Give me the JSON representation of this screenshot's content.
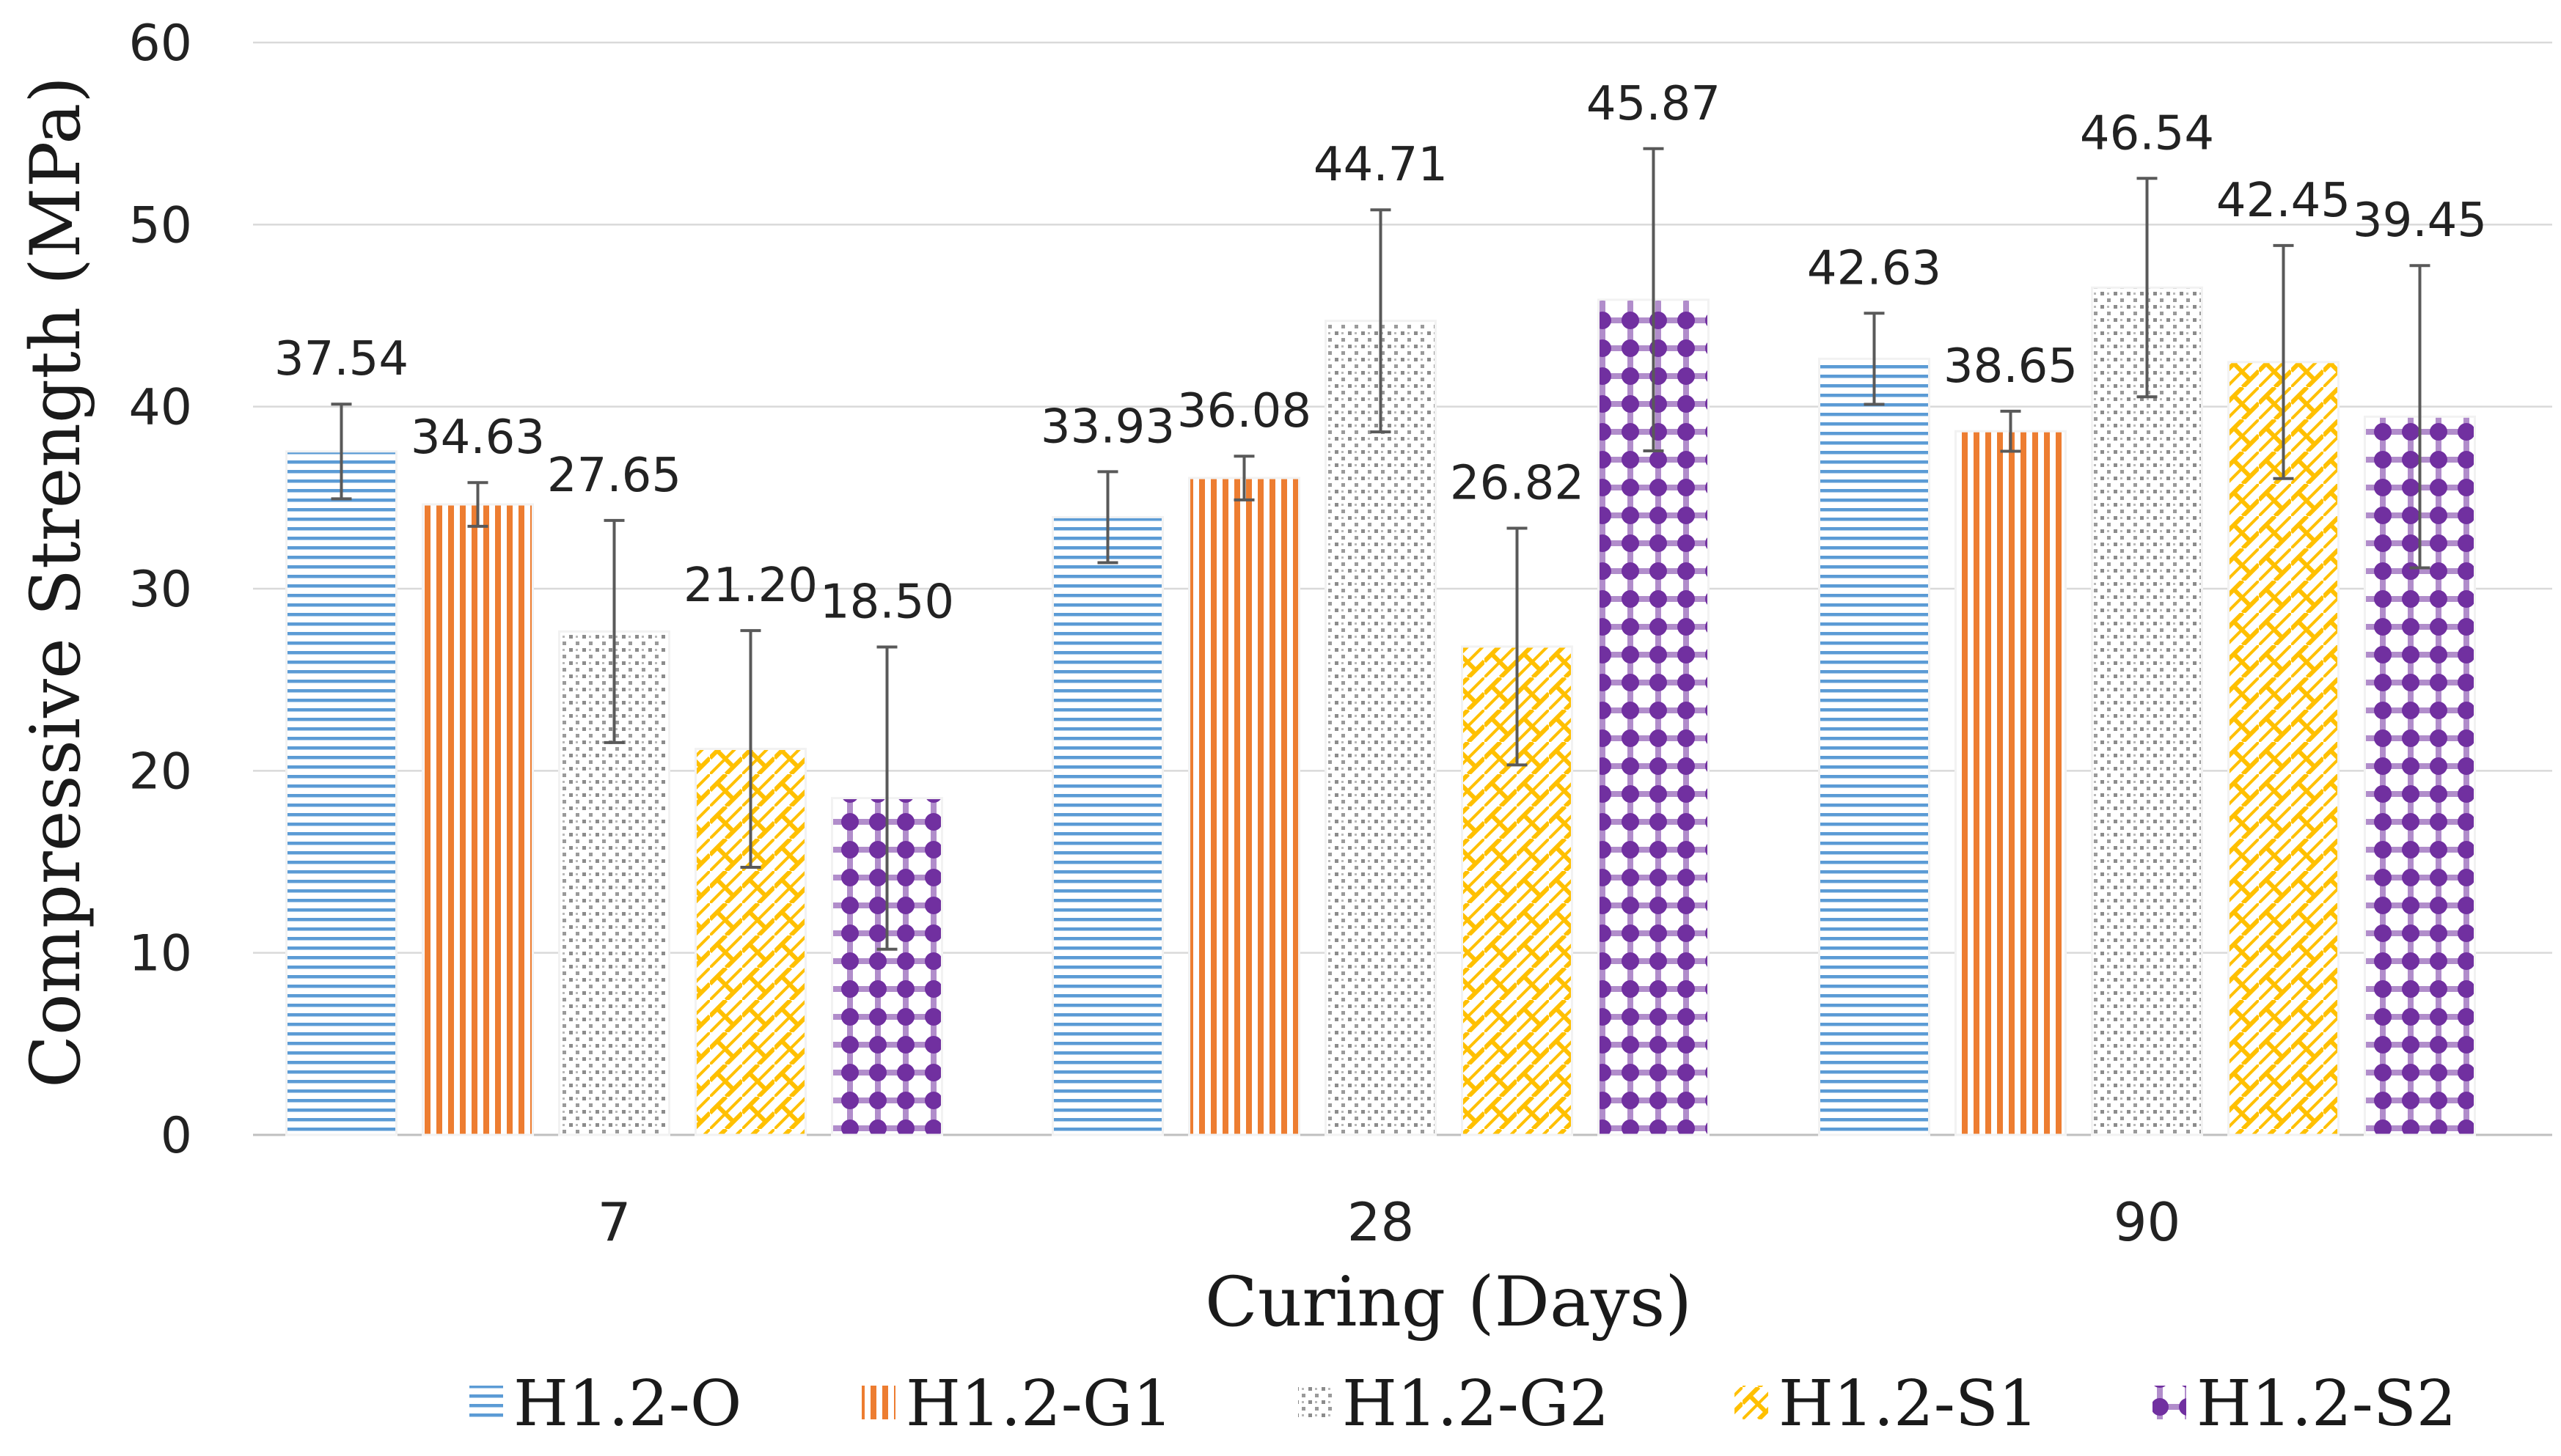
{
  "chart_data": {
    "type": "bar",
    "title": "",
    "xlabel": "Curing (Days)",
    "ylabel": "Compressive Strength (MPa)",
    "ylim": [
      0,
      60
    ],
    "yticks": [
      0,
      10,
      20,
      30,
      40,
      50,
      60
    ],
    "grid": true,
    "legend_position": "bottom",
    "categories": [
      "7",
      "28",
      "90"
    ],
    "series": [
      {
        "name": "H1.2-O",
        "values": [
          37.54,
          33.93,
          42.63
        ],
        "labels": [
          "37.54",
          "33.93",
          "42.63"
        ],
        "errors": [
          2.6,
          2.5,
          2.5
        ],
        "color": "#5b9bd5",
        "pattern": "hlines"
      },
      {
        "name": "H1.2-G1",
        "values": [
          34.63,
          36.08,
          38.65
        ],
        "labels": [
          "34.63",
          "36.08",
          "38.65"
        ],
        "errors": [
          1.2,
          1.2,
          1.1
        ],
        "color": "#ed7d31",
        "pattern": "vlines"
      },
      {
        "name": "H1.2-G2",
        "values": [
          27.65,
          44.71,
          46.54
        ],
        "labels": [
          "27.65",
          "44.71",
          "46.54"
        ],
        "errors": [
          6.1,
          6.1,
          6.0
        ],
        "color": "#a5a5a5",
        "pattern": "dots"
      },
      {
        "name": "H1.2-S1",
        "values": [
          21.2,
          26.82,
          42.45
        ],
        "labels": [
          "21.20",
          "26.82",
          "42.45"
        ],
        "errors": [
          6.5,
          6.5,
          6.4
        ],
        "color": "#ffc000",
        "pattern": "zigzag"
      },
      {
        "name": "H1.2-S2",
        "values": [
          18.5,
          45.87,
          39.45
        ],
        "labels": [
          "18.50",
          "45.87",
          "39.45"
        ],
        "errors": [
          8.3,
          8.3,
          8.3
        ],
        "color": "#7030a0",
        "pattern": "plaid"
      }
    ]
  }
}
